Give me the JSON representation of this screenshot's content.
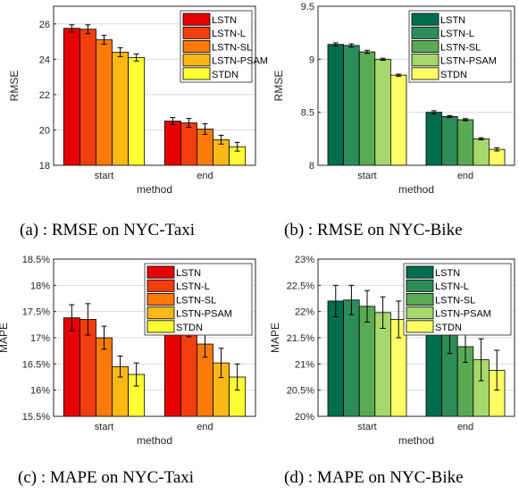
{
  "chart_data": [
    {
      "type": "bar",
      "caption": "(a) : RMSE on NYC-Taxi",
      "xlabel": "method",
      "ylabel": "RMSE",
      "categories": [
        "start",
        "end"
      ],
      "ylim": [
        18,
        27
      ],
      "yticks": [
        18,
        20,
        22,
        24,
        26
      ],
      "ytick_labels": [
        "18",
        "20",
        "22",
        "24",
        "26"
      ],
      "grid": true,
      "legend": "top-right",
      "series": [
        {
          "name": "LSTN",
          "values": [
            25.75,
            20.5
          ],
          "errors": [
            0.2,
            0.2
          ],
          "color": "#e50000"
        },
        {
          "name": "LSTN-L",
          "values": [
            25.7,
            20.4
          ],
          "errors": [
            0.25,
            0.25
          ],
          "color": "#f23d0d"
        },
        {
          "name": "LSTN-SL",
          "values": [
            25.1,
            20.05
          ],
          "errors": [
            0.25,
            0.3
          ],
          "color": "#fa7a0a"
        },
        {
          "name": "LSTN-PSAM",
          "values": [
            24.4,
            19.45
          ],
          "errors": [
            0.25,
            0.25
          ],
          "color": "#fcb814"
        },
        {
          "name": "STDN",
          "values": [
            24.1,
            19.05
          ],
          "errors": [
            0.2,
            0.25
          ],
          "color": "#ffff33"
        }
      ]
    },
    {
      "type": "bar",
      "caption": "(b) : RMSE on NYC-Bike",
      "xlabel": "method",
      "ylabel": "RMSE",
      "categories": [
        "start",
        "end"
      ],
      "ylim": [
        8,
        9.5
      ],
      "yticks": [
        8,
        8.5,
        9,
        9.5
      ],
      "ytick_labels": [
        "8",
        "8.5",
        "9",
        "9.5"
      ],
      "grid": true,
      "legend": "top-right",
      "series": [
        {
          "name": "LSTN",
          "values": [
            9.14,
            8.5
          ],
          "errors": [
            0.015,
            0.015
          ],
          "color": "#006d4e"
        },
        {
          "name": "LSTN-L",
          "values": [
            9.13,
            8.46
          ],
          "errors": [
            0.015,
            0.01
          ],
          "color": "#2d8c5a"
        },
        {
          "name": "LSTN-SL",
          "values": [
            9.07,
            8.43
          ],
          "errors": [
            0.015,
            0.01
          ],
          "color": "#5aaa55"
        },
        {
          "name": "LSTN-PSAM",
          "values": [
            9.0,
            8.25
          ],
          "errors": [
            0.01,
            0.01
          ],
          "color": "#a6d86b"
        },
        {
          "name": "STDN",
          "values": [
            8.85,
            8.15
          ],
          "errors": [
            0.01,
            0.015
          ],
          "color": "#ffff66"
        }
      ]
    },
    {
      "type": "bar",
      "caption": "(c) : MAPE on NYC-Taxi",
      "xlabel": "method",
      "ylabel": "MAPE",
      "categories": [
        "start",
        "end"
      ],
      "ylim": [
        15.5,
        18.5
      ],
      "yticks": [
        15.5,
        16,
        16.5,
        17,
        17.5,
        18,
        18.5
      ],
      "ytick_labels": [
        "15.5%",
        "16%",
        "16.5%",
        "17%",
        "17.5%",
        "18%",
        "18.5%"
      ],
      "grid": true,
      "legend": "top-right",
      "series": [
        {
          "name": "LSTN",
          "values": [
            17.38,
            17.35
          ],
          "errors": [
            0.25,
            0.25
          ],
          "color": "#e50000"
        },
        {
          "name": "LSTN-L",
          "values": [
            17.35,
            17.32
          ],
          "errors": [
            0.3,
            0.3
          ],
          "color": "#f23d0d"
        },
        {
          "name": "LSTN-SL",
          "values": [
            17.0,
            16.88
          ],
          "errors": [
            0.22,
            0.25
          ],
          "color": "#fa7a0a"
        },
        {
          "name": "LSTN-PSAM",
          "values": [
            16.45,
            16.52
          ],
          "errors": [
            0.2,
            0.28
          ],
          "color": "#fcb814"
        },
        {
          "name": "STDN",
          "values": [
            16.3,
            16.25
          ],
          "errors": [
            0.22,
            0.25
          ],
          "color": "#ffff33"
        }
      ]
    },
    {
      "type": "bar",
      "caption": "(d) : MAPE on NYC-Bike",
      "xlabel": "method",
      "ylabel": "MAPE",
      "categories": [
        "start",
        "end"
      ],
      "ylim": [
        20,
        23
      ],
      "yticks": [
        20,
        20.5,
        21,
        21.5,
        22,
        22.5,
        23
      ],
      "ytick_labels": [
        "20%",
        "20.5%",
        "21%",
        "21.5%",
        "22%",
        "22.5%",
        "23%"
      ],
      "grid": true,
      "legend": "top-right",
      "series": [
        {
          "name": "LSTN",
          "values": [
            22.2,
            21.9
          ],
          "errors": [
            0.3,
            0.3
          ],
          "color": "#006d4e"
        },
        {
          "name": "LSTN-L",
          "values": [
            22.22,
            21.55
          ],
          "errors": [
            0.28,
            0.35
          ],
          "color": "#2d8c5a"
        },
        {
          "name": "LSTN-SL",
          "values": [
            22.1,
            21.33
          ],
          "errors": [
            0.3,
            0.3
          ],
          "color": "#5aaa55"
        },
        {
          "name": "LSTN-PSAM",
          "values": [
            21.98,
            21.08
          ],
          "errors": [
            0.3,
            0.4
          ],
          "color": "#a6d86b"
        },
        {
          "name": "STDN",
          "values": [
            21.85,
            20.88
          ],
          "errors": [
            0.35,
            0.38
          ],
          "color": "#ffff66"
        }
      ]
    }
  ]
}
